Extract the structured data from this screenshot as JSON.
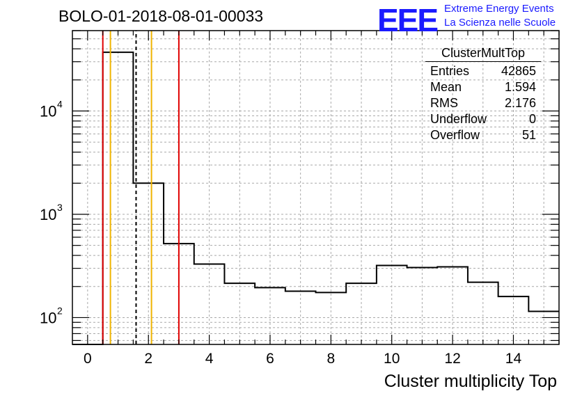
{
  "title": "BOLO-01-2018-08-01-00033",
  "logo": {
    "mark": "EEE",
    "line1": "Extreme Energy Events",
    "line2": "La Scienza nelle Scuole",
    "color": "#1a1aff"
  },
  "stats": {
    "name": "ClusterMultTop",
    "rows": [
      {
        "label": "Entries",
        "value": "42865"
      },
      {
        "label": "Mean",
        "value": "1.594"
      },
      {
        "label": "RMS",
        "value": "2.176"
      },
      {
        "label": "Underflow",
        "value": "0"
      },
      {
        "label": "Overflow",
        "value": "51"
      }
    ]
  },
  "chart_data": {
    "type": "histogram",
    "title": "BOLO-01-2018-08-01-00033",
    "xlabel": "Cluster multiplicity Top",
    "ylabel": "",
    "xlim": [
      -0.5,
      15.5
    ],
    "ylim": [
      55,
      60000
    ],
    "yscale": "log",
    "grid": true,
    "xticks": [
      0,
      2,
      4,
      6,
      8,
      10,
      12,
      14
    ],
    "yticks": [
      {
        "value": 100,
        "label": "10",
        "exp": "2"
      },
      {
        "value": 1000,
        "label": "10",
        "exp": "3"
      },
      {
        "value": 10000,
        "label": "10",
        "exp": "4"
      }
    ],
    "bin_edges": [
      -0.5,
      0.5,
      1.5,
      2.5,
      3.5,
      4.5,
      5.5,
      6.5,
      7.5,
      8.5,
      9.5,
      10.5,
      11.5,
      12.5,
      13.5,
      14.5,
      15.5
    ],
    "counts": [
      0,
      37000,
      2000,
      520,
      330,
      215,
      195,
      180,
      175,
      215,
      320,
      305,
      310,
      220,
      160,
      115
    ],
    "vlines": [
      {
        "x": 0.5,
        "color": "#e00000",
        "style": "solid",
        "ytop": 60000
      },
      {
        "x": 0.75,
        "color": "#f0b400",
        "style": "solid",
        "ytop": 60000
      },
      {
        "x": 1.594,
        "color": "#000000",
        "style": "dashed",
        "ytop": 60000
      },
      {
        "x": 2.1,
        "color": "#f0b400",
        "style": "solid",
        "ytop": 60000
      },
      {
        "x": 3.0,
        "color": "#e00000",
        "style": "solid",
        "ytop": 60000
      }
    ]
  }
}
